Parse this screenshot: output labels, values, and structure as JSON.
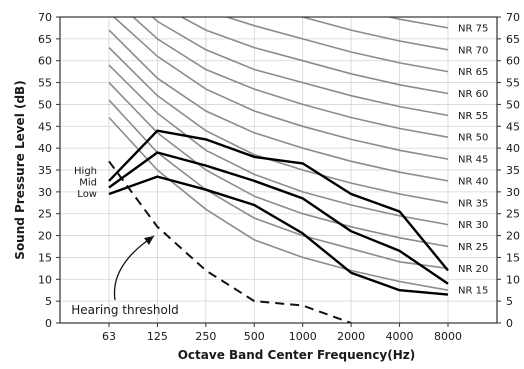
{
  "chart_data": {
    "type": "line",
    "title": "",
    "xlabel": "Octave Band Center Frequency(Hz)",
    "ylabel": "Sound Pressure Level (dB)",
    "x": [
      "63",
      "125",
      "250",
      "500",
      "1000",
      "2000",
      "4000",
      "8000"
    ],
    "ylim": [
      0,
      70
    ],
    "yticks": [
      0,
      5,
      10,
      15,
      20,
      25,
      30,
      35,
      40,
      45,
      50,
      55,
      60,
      65,
      70
    ],
    "grid": true,
    "nr_curves": [
      {
        "name": "NR 15",
        "values": [
          47,
          35,
          26,
          19,
          15,
          12,
          9.5,
          7.5
        ]
      },
      {
        "name": "NR 20",
        "values": [
          51,
          39,
          30.5,
          24,
          20,
          17,
          14,
          12.5
        ]
      },
      {
        "name": "NR 25",
        "values": [
          55,
          43.5,
          35,
          29,
          25,
          22,
          19.5,
          17.5
        ]
      },
      {
        "name": "NR 30",
        "values": [
          59,
          48,
          39.5,
          34,
          30,
          27,
          24.5,
          22.5
        ]
      },
      {
        "name": "NR 35",
        "values": [
          63,
          52,
          44,
          38.5,
          35,
          32,
          29.5,
          27.5
        ]
      },
      {
        "name": "NR 40",
        "values": [
          67,
          56,
          48.5,
          43.5,
          40,
          37,
          34.5,
          32.5
        ]
      },
      {
        "name": "NR 45",
        "values": [
          71,
          61,
          53.5,
          48.5,
          45,
          42,
          39.5,
          37.5
        ]
      },
      {
        "name": "NR 50",
        "values": [
          75,
          65,
          58,
          53.5,
          50,
          47,
          44.5,
          42.5
        ]
      },
      {
        "name": "NR 55",
        "values": [
          79,
          69,
          62.5,
          58,
          55,
          52,
          49.5,
          47.5
        ]
      },
      {
        "name": "NR 60",
        "values": [
          83,
          73,
          67,
          63,
          60,
          57,
          54.5,
          52.5
        ]
      },
      {
        "name": "NR 65",
        "values": [
          87,
          77,
          71.5,
          68,
          65,
          62,
          59.5,
          57.5
        ]
      },
      {
        "name": "NR 70",
        "values": [
          91,
          81,
          76,
          73,
          70,
          67,
          64.5,
          62.5
        ]
      },
      {
        "name": "NR 75",
        "values": [
          95,
          85,
          80.5,
          78,
          75,
          72,
          69.5,
          67.5
        ]
      }
    ],
    "series": [
      {
        "name": "High",
        "values": [
          32.5,
          44,
          42,
          38,
          36.5,
          29.5,
          25.5,
          12
        ]
      },
      {
        "name": "Mid",
        "values": [
          31,
          39,
          36,
          32.5,
          28.5,
          21,
          16.5,
          9
        ]
      },
      {
        "name": "Low",
        "values": [
          29.5,
          33.5,
          30.5,
          27,
          20.5,
          11.5,
          7.5,
          6.5
        ]
      }
    ],
    "hearing_threshold": {
      "name": "Hearing threshold",
      "values": [
        37,
        22,
        12,
        5,
        4,
        0,
        null,
        null
      ]
    },
    "annotations": [
      "Hearing threshold"
    ]
  }
}
